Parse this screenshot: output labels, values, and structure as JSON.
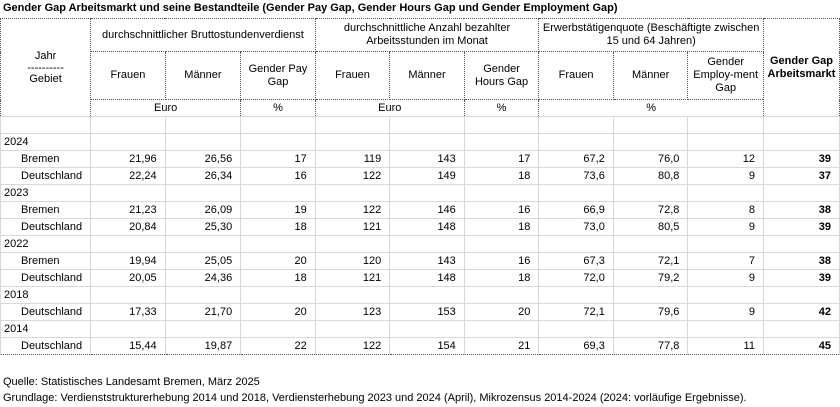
{
  "title": "Gender Gap Arbeitsmarkt und seine Bestandteile (Gender Pay Gap, Gender Hours Gap und Gender Employment Gap)",
  "header": {
    "jahr": "Jahr",
    "sep": "----------",
    "gebiet": "Gebiet",
    "group1": "durchschnittlicher Bruttostundenverdienst",
    "group2": "durchschnittliche Anzahl bezahlter Arbeitsstunden im Monat",
    "group3": "Erwerbstätigenquote (Beschäftigte zwischen 15 und 64 Jahren)",
    "total": "Gender Gap Arbeitsmarkt",
    "frauen": "Frauen",
    "maenner": "Männer",
    "pay_gap": "Gender Pay Gap",
    "hours_gap": "Gender Hours Gap",
    "emp_gap": "Gender Employ-ment Gap",
    "unit_euro": "Euro",
    "unit_pct": "%",
    "unit_euro2": "Euro",
    "unit_pct2": "%",
    "unit_pct3": "%"
  },
  "rows": [
    {
      "label": "2024",
      "year": true
    },
    {
      "label": "Bremen",
      "v": [
        "21,96",
        "26,56",
        "17",
        "119",
        "143",
        "17",
        "67,2",
        "76,0",
        "12",
        "39"
      ]
    },
    {
      "label": "Deutschland",
      "v": [
        "22,24",
        "26,34",
        "16",
        "122",
        "149",
        "18",
        "73,6",
        "80,8",
        "9",
        "37"
      ]
    },
    {
      "label": "2023",
      "year": true
    },
    {
      "label": "Bremen",
      "v": [
        "21,23",
        "26,09",
        "19",
        "122",
        "146",
        "16",
        "66,9",
        "72,8",
        "8",
        "38"
      ]
    },
    {
      "label": "Deutschland",
      "v": [
        "20,84",
        "25,30",
        "18",
        "121",
        "148",
        "18",
        "73,0",
        "80,5",
        "9",
        "39"
      ]
    },
    {
      "label": "2022",
      "year": true
    },
    {
      "label": "Bremen",
      "v": [
        "19,94",
        "25,05",
        "20",
        "120",
        "143",
        "16",
        "67,3",
        "72,1",
        "7",
        "38"
      ]
    },
    {
      "label": "Deutschland",
      "v": [
        "20,05",
        "24,36",
        "18",
        "121",
        "148",
        "18",
        "72,0",
        "79,2",
        "9",
        "39"
      ]
    },
    {
      "label": "2018",
      "year": true
    },
    {
      "label": "Deutschland",
      "v": [
        "17,33",
        "21,70",
        "20",
        "123",
        "153",
        "20",
        "72,1",
        "79,6",
        "9",
        "42"
      ]
    },
    {
      "label": "2014",
      "year": true
    },
    {
      "label": "Deutschland",
      "v": [
        "15,44",
        "19,87",
        "22",
        "122",
        "154",
        "21",
        "69,3",
        "77,8",
        "11",
        "45"
      ]
    }
  ],
  "footer": {
    "source": "Quelle: Statistisches Landesamt Bremen, März 2025",
    "basis": "Grundlage: Verdienststrukturerhebung 2014 und 2018, Verdiensterhebung 2023 und 2024 (April), Mikrozensus 2014-2024 (2024: vorläufige Ergebnisse)."
  }
}
